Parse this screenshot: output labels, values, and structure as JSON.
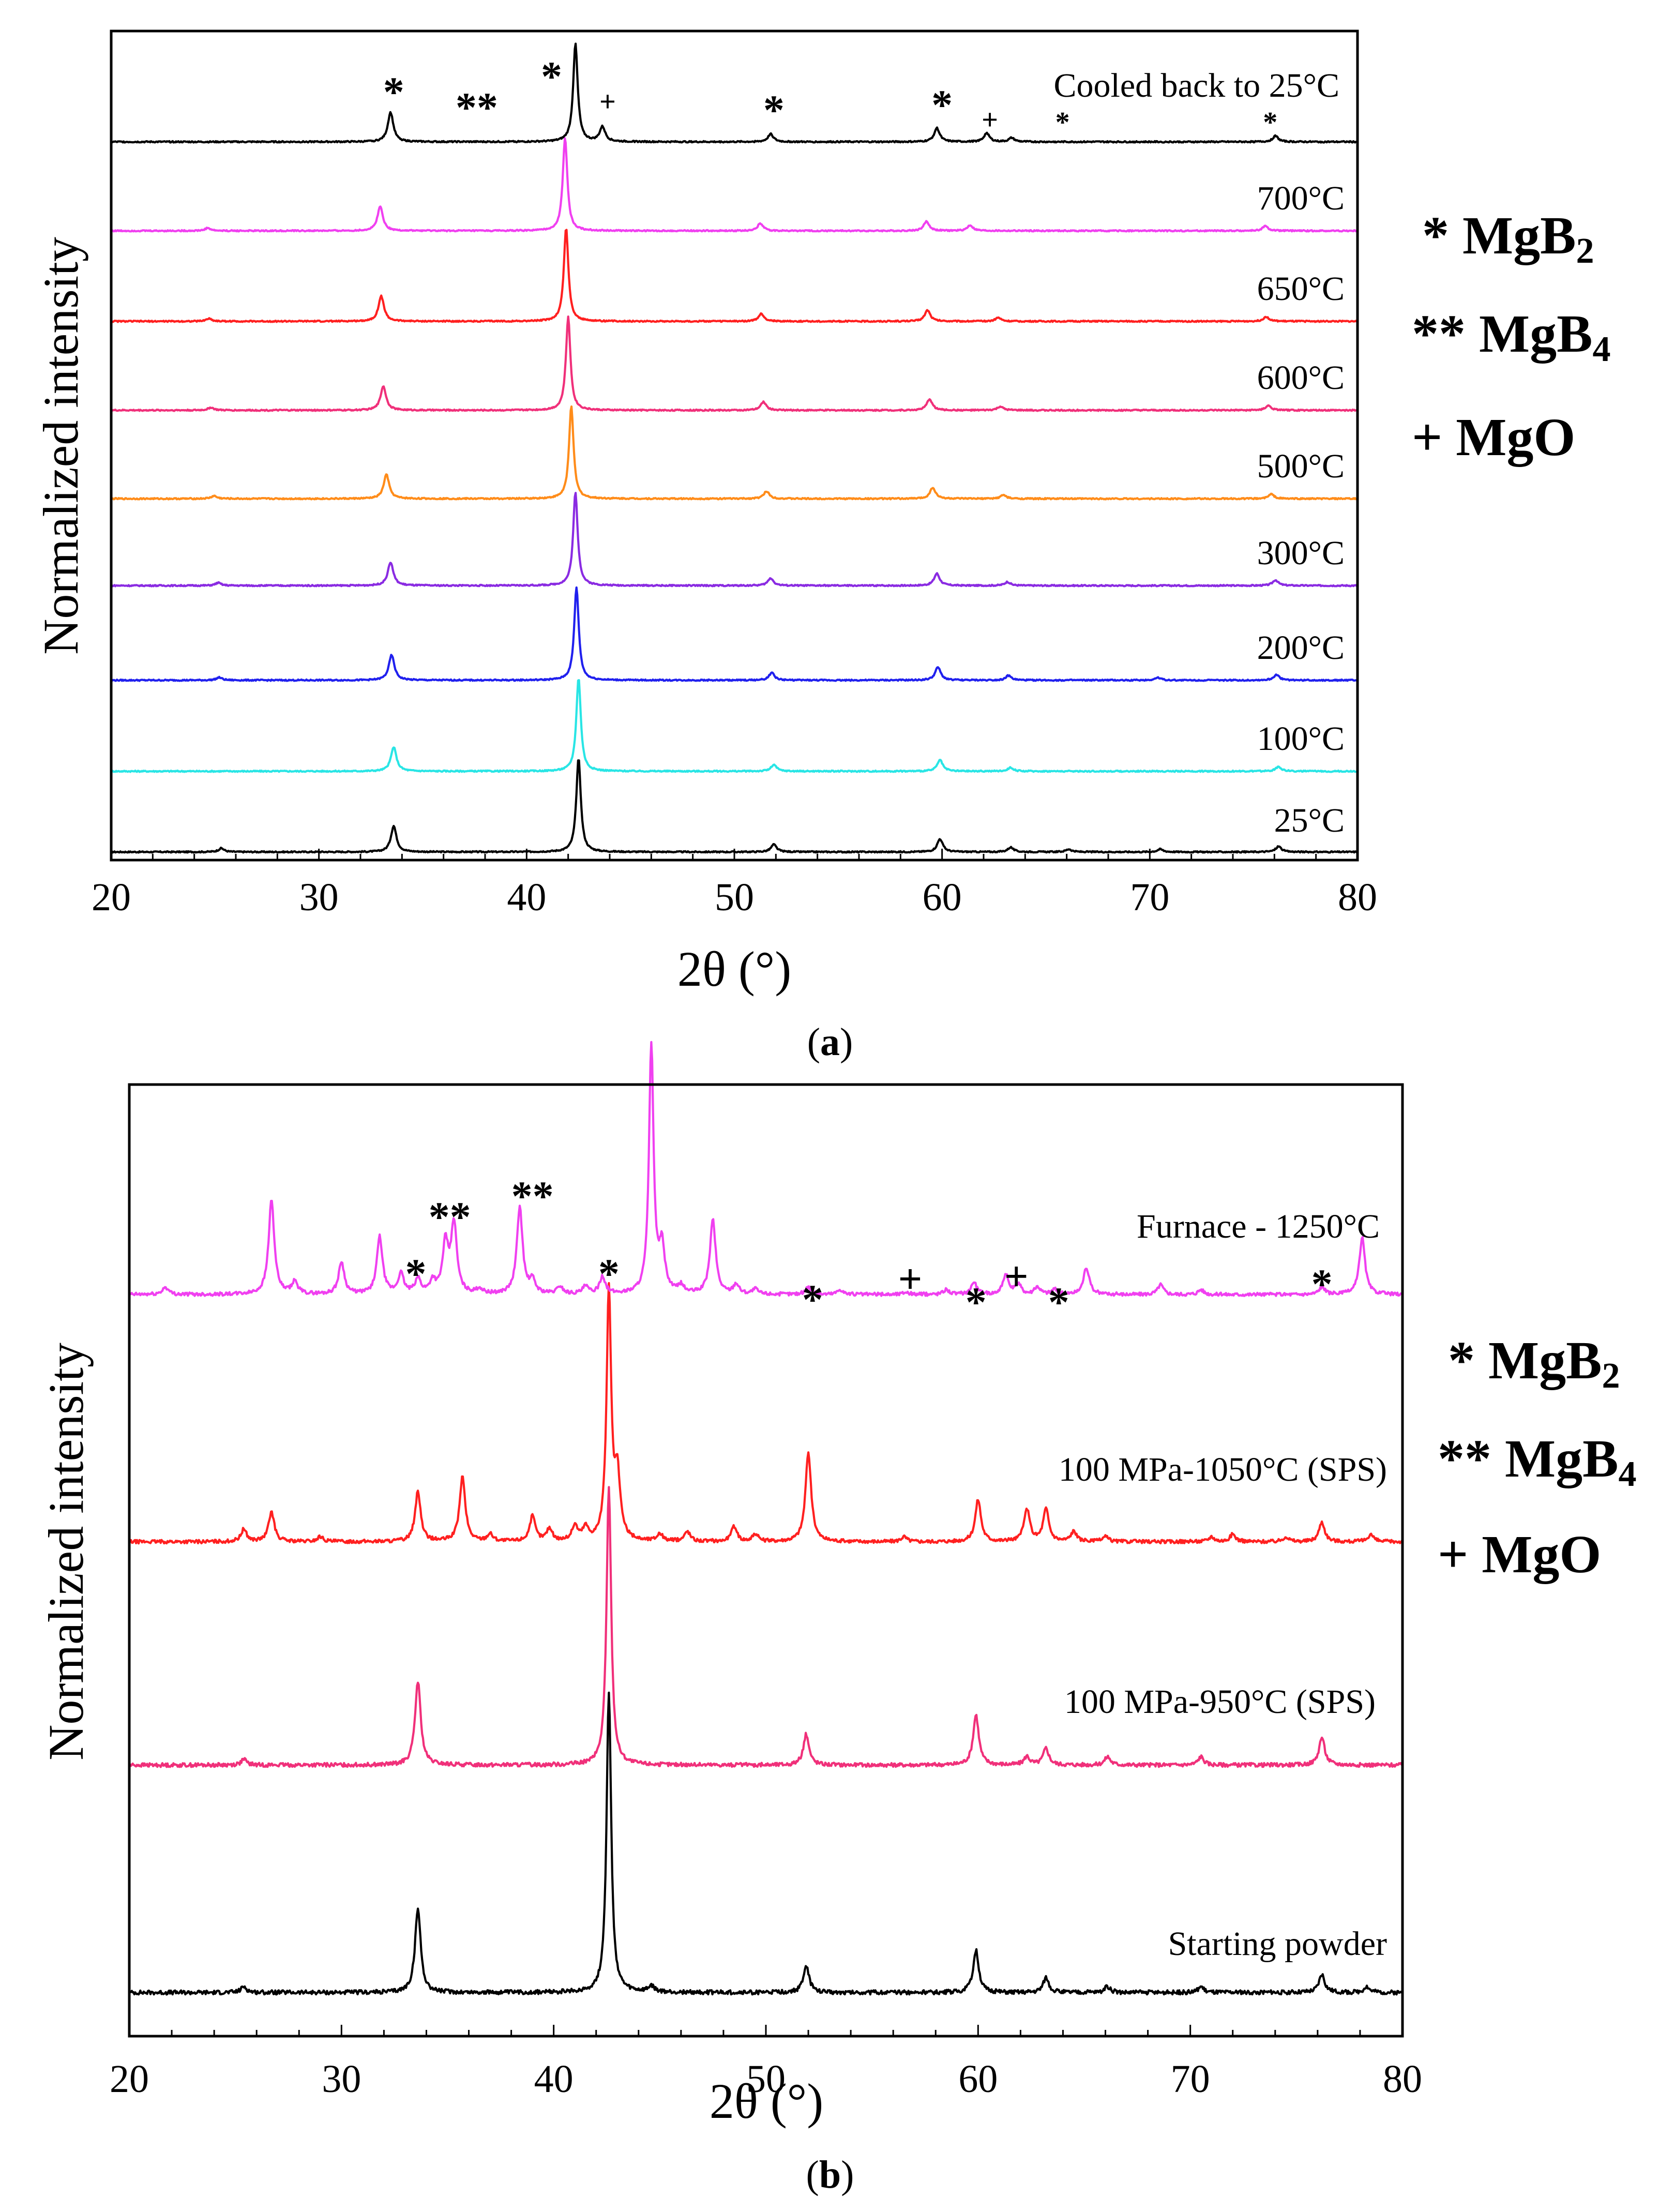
{
  "figure": {
    "caption_a": {
      "open": "(",
      "letter": "a",
      "close": ")"
    },
    "caption_b": {
      "open": "(",
      "letter": "b",
      "close": ")"
    }
  },
  "legend_a": [
    {
      "marker": "*",
      "name": "MgB",
      "sub": "2"
    },
    {
      "marker": "**",
      "name": "MgB",
      "sub": "4"
    },
    {
      "marker": "+",
      "name": "MgO",
      "sub": ""
    }
  ],
  "legend_b": [
    {
      "marker": "*",
      "name": "MgB",
      "sub": "2"
    },
    {
      "marker": "**",
      "name": "MgB",
      "sub": "4"
    },
    {
      "marker": "+",
      "name": "MgO",
      "sub": ""
    }
  ],
  "chart_data": [
    {
      "id": "a",
      "type": "line",
      "title": "",
      "xlabel": "2θ (°)",
      "ylabel": "Normalized intensity",
      "xlim": [
        20,
        80
      ],
      "xticks": [
        20,
        30,
        40,
        50,
        60,
        70,
        80
      ],
      "legend": "right outside",
      "series": [
        {
          "name": "25°C",
          "color": "#000000",
          "offset": 0,
          "scale": 180,
          "shift": 0,
          "peaks": [
            [
              25.3,
              0.04
            ],
            [
              33.6,
              0.28
            ],
            [
              42.5,
              1.0
            ],
            [
              51.9,
              0.08
            ],
            [
              59.9,
              0.14
            ],
            [
              63.3,
              0.05
            ],
            [
              66.1,
              0.03
            ],
            [
              70.5,
              0.03
            ],
            [
              76.2,
              0.06
            ]
          ]
        },
        {
          "name": "100°C",
          "color": "#29e5e5",
          "offset": 1,
          "scale": 180,
          "shift": 0,
          "peaks": [
            [
              33.6,
              0.26
            ],
            [
              42.5,
              1.0
            ],
            [
              51.9,
              0.07
            ],
            [
              59.9,
              0.12
            ],
            [
              63.3,
              0.04
            ],
            [
              76.2,
              0.05
            ]
          ]
        },
        {
          "name": "200°C",
          "color": "#2020ee",
          "offset": 2,
          "scale": 180,
          "shift": -0.1,
          "peaks": [
            [
              25.3,
              0.03
            ],
            [
              33.6,
              0.27
            ],
            [
              42.5,
              1.0
            ],
            [
              51.9,
              0.08
            ],
            [
              59.9,
              0.14
            ],
            [
              63.3,
              0.05
            ],
            [
              70.5,
              0.03
            ],
            [
              76.2,
              0.06
            ]
          ]
        },
        {
          "name": "300°C",
          "color": "#8a2be2",
          "offset": 3,
          "scale": 180,
          "shift": -0.15,
          "peaks": [
            [
              25.3,
              0.03
            ],
            [
              33.6,
              0.25
            ],
            [
              42.5,
              1.0
            ],
            [
              51.9,
              0.08
            ],
            [
              59.9,
              0.13
            ],
            [
              63.3,
              0.04
            ],
            [
              76.2,
              0.06
            ]
          ]
        },
        {
          "name": "500°C",
          "color": "#ff8c1a",
          "offset": 4,
          "scale": 180,
          "shift": -0.35,
          "peaks": [
            [
              25.3,
              0.03
            ],
            [
              33.6,
              0.26
            ],
            [
              42.5,
              1.0
            ],
            [
              51.9,
              0.08
            ],
            [
              59.9,
              0.12
            ],
            [
              63.3,
              0.04
            ],
            [
              76.2,
              0.05
            ]
          ]
        },
        {
          "name": "600°C",
          "color": "#f0307a",
          "offset": 5,
          "scale": 180,
          "shift": -0.5,
          "peaks": [
            [
              25.3,
              0.03
            ],
            [
              33.6,
              0.26
            ],
            [
              42.5,
              1.0
            ],
            [
              51.9,
              0.09
            ],
            [
              59.9,
              0.12
            ],
            [
              63.3,
              0.04
            ],
            [
              76.2,
              0.05
            ]
          ]
        },
        {
          "name": "650°C",
          "color": "#ff2020",
          "offset": 6,
          "scale": 180,
          "shift": -0.6,
          "peaks": [
            [
              25.3,
              0.03
            ],
            [
              33.6,
              0.27
            ],
            [
              42.5,
              1.0
            ],
            [
              51.9,
              0.08
            ],
            [
              59.9,
              0.12
            ],
            [
              63.3,
              0.04
            ],
            [
              76.2,
              0.05
            ]
          ]
        },
        {
          "name": "700°C",
          "color": "#f040f0",
          "offset": 7,
          "scale": 180,
          "shift": -0.65,
          "peaks": [
            [
              25.3,
              0.03
            ],
            [
              33.6,
              0.26
            ],
            [
              42.5,
              1.0
            ],
            [
              51.9,
              0.08
            ],
            [
              59.9,
              0.1
            ],
            [
              62.0,
              0.06
            ],
            [
              76.2,
              0.05
            ]
          ]
        },
        {
          "name": "Cooled back to 25°C",
          "color": "#000000",
          "offset": 8,
          "scale": 190,
          "shift": -0.15,
          "peaks": [
            [
              33.6,
              0.3
            ],
            [
              42.5,
              1.0
            ],
            [
              43.8,
              0.15
            ],
            [
              51.9,
              0.08
            ],
            [
              59.9,
              0.14
            ],
            [
              62.3,
              0.09
            ],
            [
              63.5,
              0.04
            ],
            [
              76.2,
              0.06
            ]
          ]
        }
      ],
      "annotations": [
        {
          "text": "*",
          "x": 33.6
        },
        {
          "text": "**",
          "x": 37.6
        },
        {
          "text": "*",
          "x": 41.2
        },
        {
          "text": "+",
          "x": 43.9
        },
        {
          "text": "*",
          "x": 51.9
        },
        {
          "text": "*",
          "x": 60.0
        },
        {
          "text": "+",
          "x": 62.3
        },
        {
          "text": "*",
          "x": 65.8
        },
        {
          "text": "*",
          "x": 75.8
        }
      ]
    },
    {
      "id": "b",
      "type": "line",
      "title": "",
      "xlabel": "2θ (°)",
      "ylabel": "Normalized intensity",
      "xlim": [
        20,
        80
      ],
      "xticks": [
        20,
        30,
        40,
        50,
        60,
        70,
        80
      ],
      "legend": "right outside",
      "series": [
        {
          "name": "Starting powder",
          "color": "#000000",
          "offset": 0,
          "scale": 580,
          "peaks": [
            [
              25.4,
              0.02
            ],
            [
              33.6,
              0.28
            ],
            [
              42.6,
              1.0
            ],
            [
              44.6,
              0.02
            ],
            [
              51.9,
              0.09
            ],
            [
              59.9,
              0.14
            ],
            [
              63.2,
              0.05
            ],
            [
              66.1,
              0.02
            ],
            [
              70.5,
              0.02
            ],
            [
              76.2,
              0.06
            ],
            [
              78.3,
              0.02
            ]
          ]
        },
        {
          "name": "100 MPa-950°C (SPS)",
          "color": "#f0307a",
          "offset": 1,
          "scale": 540,
          "peaks": [
            [
              25.4,
              0.02
            ],
            [
              33.6,
              0.3
            ],
            [
              42.6,
              1.0
            ],
            [
              51.9,
              0.11
            ],
            [
              59.9,
              0.18
            ],
            [
              62.3,
              0.03
            ],
            [
              63.2,
              0.06
            ],
            [
              66.1,
              0.03
            ],
            [
              70.5,
              0.03
            ],
            [
              76.2,
              0.1
            ]
          ]
        },
        {
          "name": "100 MPa-1050°C (SPS)",
          "color": "#ff2020",
          "offset": 2,
          "scale": 480,
          "peaks": [
            [
              25.4,
              0.05
            ],
            [
              26.7,
              0.12
            ],
            [
              29.0,
              0.02
            ],
            [
              33.6,
              0.2
            ],
            [
              35.7,
              0.26
            ],
            [
              37.0,
              0.03
            ],
            [
              39.0,
              0.1
            ],
            [
              39.8,
              0.05
            ],
            [
              41.0,
              0.06
            ],
            [
              41.5,
              0.05
            ],
            [
              42.6,
              1.0
            ],
            [
              43.0,
              0.25
            ],
            [
              45.0,
              0.03
            ],
            [
              46.3,
              0.04
            ],
            [
              48.5,
              0.06
            ],
            [
              49.5,
              0.03
            ],
            [
              52.0,
              0.36
            ],
            [
              56.5,
              0.02
            ],
            [
              60.0,
              0.17
            ],
            [
              62.3,
              0.13
            ],
            [
              63.2,
              0.13
            ],
            [
              64.5,
              0.04
            ],
            [
              66.0,
              0.02
            ],
            [
              71.0,
              0.02
            ],
            [
              72.0,
              0.03
            ],
            [
              74.5,
              0.02
            ],
            [
              76.2,
              0.08
            ],
            [
              78.5,
              0.03
            ]
          ]
        },
        {
          "name": "Furnace - 1250°C",
          "color": "#f040f0",
          "offset": 3,
          "scale": 480,
          "peaks": [
            [
              21.7,
              0.03
            ],
            [
              26.7,
              0.38
            ],
            [
              27.8,
              0.05
            ],
            [
              30.0,
              0.13
            ],
            [
              31.8,
              0.23
            ],
            [
              32.8,
              0.08
            ],
            [
              33.6,
              0.06
            ],
            [
              34.3,
              0.05
            ],
            [
              34.9,
              0.2
            ],
            [
              35.3,
              0.28
            ],
            [
              36.5,
              0.02
            ],
            [
              38.4,
              0.35
            ],
            [
              39.0,
              0.05
            ],
            [
              40.3,
              0.03
            ],
            [
              41.5,
              0.03
            ],
            [
              42.3,
              0.07
            ],
            [
              44.6,
              1.0
            ],
            [
              45.1,
              0.18
            ],
            [
              46.0,
              0.03
            ],
            [
              47.5,
              0.3
            ],
            [
              48.6,
              0.04
            ],
            [
              49.5,
              0.02
            ],
            [
              52.0,
              0.03
            ],
            [
              53.5,
              0.02
            ],
            [
              56.6,
              0.01
            ],
            [
              58.5,
              0.02
            ],
            [
              59.8,
              0.05
            ],
            [
              61.3,
              0.08
            ],
            [
              61.9,
              0.04
            ],
            [
              62.8,
              0.03
            ],
            [
              63.6,
              0.02
            ],
            [
              65.1,
              0.11
            ],
            [
              68.6,
              0.04
            ],
            [
              70.5,
              0.02
            ],
            [
              76.2,
              0.03
            ],
            [
              78.1,
              0.23
            ]
          ]
        }
      ],
      "annotations": [
        {
          "text": "*",
          "x": 33.5
        },
        {
          "text": "**",
          "x": 35.1
        },
        {
          "text": "**",
          "x": 39.0
        },
        {
          "text": "*",
          "x": 42.6
        },
        {
          "text": "*",
          "x": 52.2
        },
        {
          "text": "+",
          "x": 56.8
        },
        {
          "text": "*",
          "x": 59.9
        },
        {
          "text": "+",
          "x": 61.8
        },
        {
          "text": "*",
          "x": 63.8
        },
        {
          "text": "*",
          "x": 76.2
        }
      ]
    }
  ]
}
